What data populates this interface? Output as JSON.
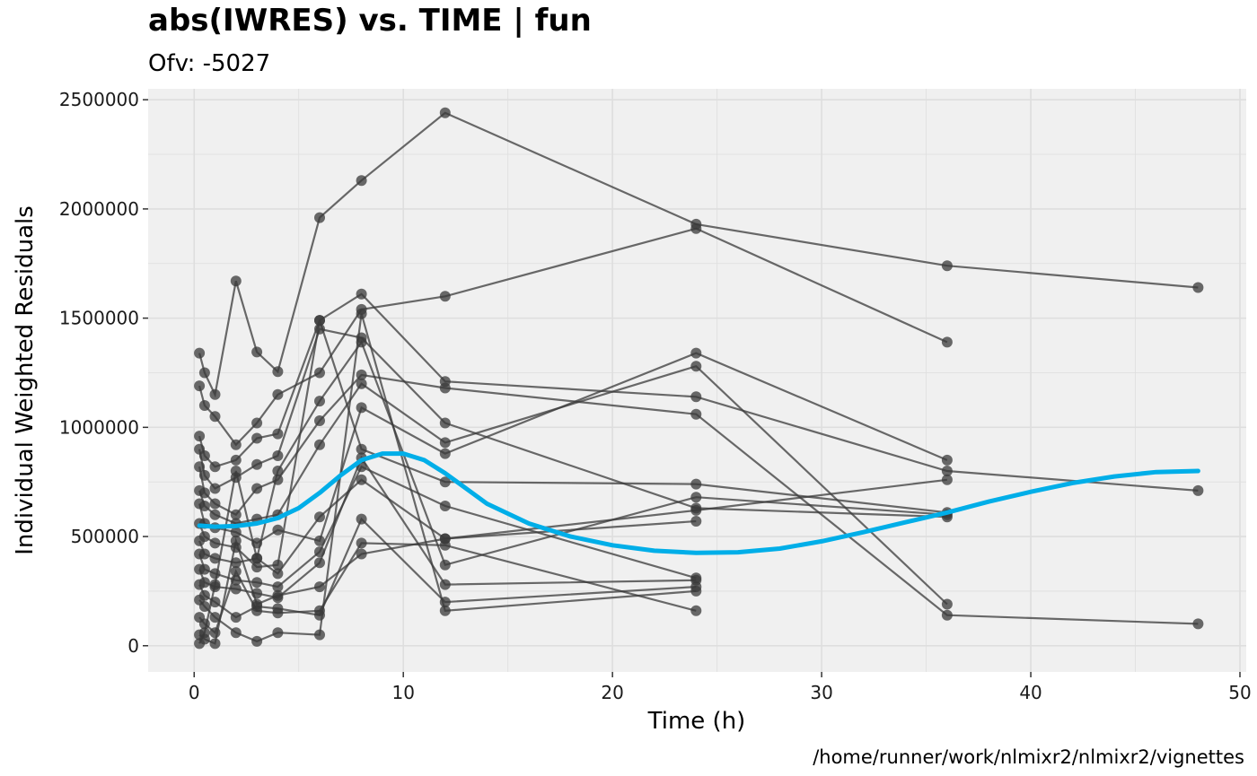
{
  "chart_data": {
    "type": "line",
    "title": "abs(IWRES) vs. TIME  | fun",
    "subtitle": "Ofv: -5027",
    "xlabel": "Time (h)",
    "ylabel": "Individual Weighted Residuals",
    "caption": "/home/runner/work/nlmixr2/nlmixr2/vignettes",
    "xlim": [
      -2.2,
      50.3
    ],
    "ylim": [
      -120000,
      2550000
    ],
    "x_ticks": [
      0,
      10,
      20,
      30,
      40,
      50
    ],
    "y_ticks": [
      0,
      500000,
      1000000,
      1500000,
      2000000,
      2500000
    ],
    "grid": true,
    "colors": {
      "panel": "#f0f0f0",
      "grid": "#dedede",
      "points": "#3a3a3a",
      "smooth": "#00aee8",
      "tick": "#333333"
    },
    "subjects": [
      {
        "x": [
          0.25,
          0.5,
          1,
          2,
          3,
          4,
          6,
          8,
          12,
          24,
          36,
          48
        ],
        "y": [
          1340000,
          1250000,
          1150000,
          1670000,
          1345000,
          1255000,
          1960000,
          2130000,
          2440000,
          1930000,
          1740000,
          1640000
        ]
      },
      {
        "x": [
          0.25,
          0.5,
          1,
          2,
          3,
          4,
          6,
          8,
          12,
          24,
          36
        ],
        "y": [
          1190000,
          1100000,
          1050000,
          920000,
          1020000,
          1150000,
          1250000,
          1540000,
          1600000,
          1910000,
          1390000
        ]
      },
      {
        "x": [
          0.25,
          0.5,
          1,
          2,
          3,
          4,
          6,
          8,
          12,
          24,
          36,
          48
        ],
        "y": [
          960000,
          870000,
          820000,
          850000,
          950000,
          970000,
          1490000,
          1610000,
          1210000,
          1140000,
          800000,
          710000
        ]
      },
      {
        "x": [
          0.25,
          0.5,
          1,
          2,
          3,
          4,
          6,
          8,
          12,
          24,
          36
        ],
        "y": [
          900000,
          780000,
          720000,
          770000,
          830000,
          870000,
          1450000,
          1410000,
          1020000,
          630000,
          590000
        ]
      },
      {
        "x": [
          0.25,
          0.5,
          1,
          2,
          3,
          4,
          6,
          8,
          12,
          24,
          36,
          48
        ],
        "y": [
          820000,
          700000,
          650000,
          600000,
          720000,
          760000,
          1030000,
          1240000,
          1180000,
          1060000,
          140000,
          100000
        ]
      },
      {
        "x": [
          0.25,
          0.5,
          1,
          2,
          3,
          4,
          6,
          8,
          12,
          24,
          36
        ],
        "y": [
          710000,
          640000,
          600000,
          560000,
          580000,
          600000,
          920000,
          1200000,
          930000,
          1280000,
          190000
        ]
      },
      {
        "x": [
          0.25,
          0.5,
          1,
          2,
          3,
          4,
          6,
          8,
          12,
          24,
          36
        ],
        "y": [
          650000,
          560000,
          540000,
          520000,
          470000,
          530000,
          480000,
          1090000,
          880000,
          1340000,
          850000
        ]
      },
      {
        "x": [
          0.25,
          0.5,
          1,
          2,
          3,
          4,
          6,
          8,
          12,
          24,
          36
        ],
        "y": [
          560000,
          500000,
          470000,
          450000,
          360000,
          370000,
          1490000,
          900000,
          750000,
          740000,
          610000
        ]
      },
      {
        "x": [
          0.25,
          0.5,
          1,
          2,
          3,
          4,
          6,
          8,
          12,
          24,
          36
        ],
        "y": [
          480000,
          420000,
          400000,
          380000,
          400000,
          330000,
          590000,
          760000,
          490000,
          620000,
          760000
        ]
      },
      {
        "x": [
          0.25,
          0.5,
          1,
          2,
          3,
          4,
          6,
          8,
          12,
          24
        ],
        "y": [
          420000,
          350000,
          330000,
          300000,
          290000,
          270000,
          430000,
          820000,
          640000,
          310000
        ]
      },
      {
        "x": [
          0.25,
          0.5,
          1,
          2,
          3,
          4,
          6,
          8,
          12,
          24
        ],
        "y": [
          350000,
          290000,
          270000,
          260000,
          240000,
          220000,
          380000,
          860000,
          280000,
          300000
        ]
      },
      {
        "x": [
          0.25,
          0.5,
          1,
          2,
          3,
          4,
          6,
          8,
          12,
          24
        ],
        "y": [
          280000,
          230000,
          200000,
          130000,
          180000,
          170000,
          140000,
          580000,
          200000,
          270000
        ]
      },
      {
        "x": [
          0.25,
          0.5,
          1,
          2,
          3,
          4,
          6,
          8,
          12,
          24
        ],
        "y": [
          210000,
          180000,
          130000,
          60000,
          20000,
          60000,
          50000,
          1520000,
          160000,
          250000
        ]
      },
      {
        "x": [
          0.25,
          0.5,
          1,
          2,
          3,
          4,
          6,
          8,
          12,
          24
        ],
        "y": [
          130000,
          100000,
          60000,
          340000,
          160000,
          150000,
          160000,
          470000,
          460000,
          160000
        ]
      },
      {
        "x": [
          0.25,
          0.5,
          1,
          2,
          3,
          4,
          6,
          8,
          12,
          24
        ],
        "y": [
          50000,
          30000,
          10000,
          480000,
          190000,
          230000,
          270000,
          420000,
          490000,
          570000
        ]
      },
      {
        "x": [
          0.25,
          0.5,
          1,
          2,
          3,
          4,
          6,
          8,
          12,
          24,
          36
        ],
        "y": [
          10000,
          60000,
          280000,
          800000,
          400000,
          800000,
          1120000,
          1390000,
          370000,
          680000,
          600000
        ]
      }
    ],
    "smooth": {
      "x": [
        0.25,
        1,
        2,
        3,
        4,
        5,
        6,
        7,
        8,
        9,
        10,
        11,
        12,
        13,
        14,
        16,
        18,
        20,
        22,
        24,
        26,
        28,
        30,
        32,
        34,
        36,
        38,
        40,
        42,
        44,
        46,
        48
      ],
      "y": [
        550000,
        545000,
        548000,
        560000,
        585000,
        630000,
        700000,
        780000,
        850000,
        880000,
        880000,
        850000,
        790000,
        720000,
        650000,
        560000,
        500000,
        460000,
        435000,
        425000,
        428000,
        445000,
        478000,
        520000,
        565000,
        610000,
        660000,
        705000,
        745000,
        775000,
        795000,
        800000
      ]
    }
  }
}
